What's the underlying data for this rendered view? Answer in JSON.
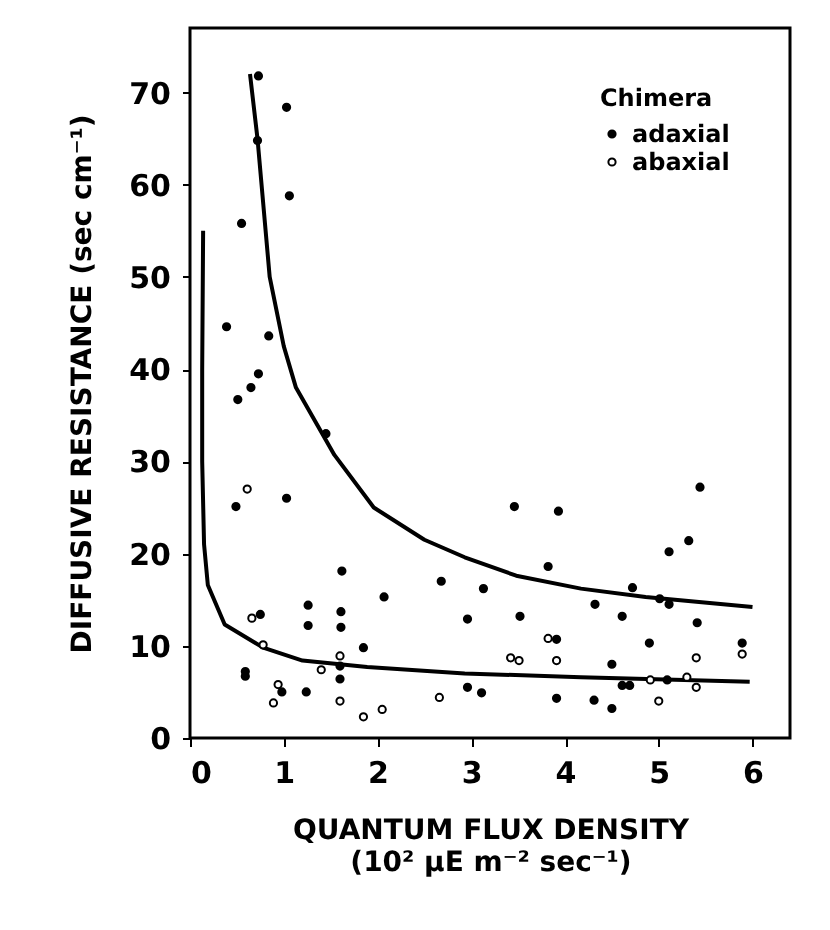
{
  "chart_data": {
    "type": "scatter",
    "xlabel": "QUANTUM FLUX DENSITY\n(10² µE m⁻² sec⁻¹)",
    "ylabel": "DIFFUSIVE RESISTANCE (sec cm⁻¹)",
    "legend_title": "Chimera",
    "legend": "top right",
    "marker": "circle",
    "grid": false,
    "xlim": [
      0,
      6.4
    ],
    "ylim": [
      0,
      77
    ],
    "xticks": [
      0,
      1,
      2,
      3,
      4,
      5,
      6
    ],
    "yticks": [
      0,
      10,
      20,
      30,
      40,
      50,
      60,
      70
    ],
    "series": [
      {
        "name": "adaxial",
        "color": "#000000",
        "x": [
          0.73,
          1.03,
          0.72,
          1.06,
          0.55,
          0.39,
          0.84,
          0.73,
          0.65,
          0.51,
          1.45,
          0.49,
          1.03,
          1.62,
          2.68,
          2.07,
          1.26,
          1.61,
          1.26,
          1.61,
          0.75,
          1.85,
          1.6,
          1.6,
          0.59,
          0.59,
          0.98,
          1.24,
          3.46,
          3.93,
          5.44,
          5.32,
          5.11,
          3.82,
          3.13,
          4.72,
          5.01,
          5.11,
          4.32,
          2.96,
          3.52,
          4.61,
          5.41,
          3.91,
          4.9,
          5.89,
          4.5,
          5.09,
          4.61,
          4.69,
          2.96,
          3.11,
          3.91,
          4.31,
          4.5
        ],
        "values": [
          71.8,
          68.4,
          64.8,
          58.8,
          55.8,
          44.6,
          43.6,
          39.5,
          38,
          36.7,
          33,
          25.1,
          26,
          18.1,
          17,
          15.3,
          14.4,
          13.7,
          12.2,
          12,
          13.4,
          9.8,
          7.8,
          6.4,
          7.2,
          6.7,
          5,
          5,
          25.1,
          24.6,
          27.2,
          21.4,
          20.2,
          18.6,
          16.2,
          16.3,
          15.1,
          14.5,
          14.5,
          12.9,
          13.2,
          13.2,
          12.5,
          10.7,
          10.3,
          10.3,
          8,
          6.3,
          5.7,
          5.7,
          5.5,
          4.9,
          4.3,
          4.1,
          3.2
        ]
      },
      {
        "name": "abaxial",
        "color": "#000000",
        "x": [
          0.61,
          0.66,
          0.78,
          1.6,
          1.4,
          0.94,
          0.89,
          1.6,
          1.85,
          2.05,
          2.66,
          3.82,
          5.89,
          3.42,
          3.51,
          3.91,
          5.4,
          5.4,
          4.91,
          5.3,
          5.0
        ],
        "values": [
          27,
          13,
          10.1,
          8.9,
          7.4,
          5.8,
          3.8,
          4,
          2.3,
          3.1,
          4.4,
          10.8,
          9.1,
          8.7,
          8.4,
          8.4,
          8.7,
          5.5,
          6.3,
          6.6,
          4.0
        ]
      },
      {
        "type": "line",
        "color": "#000000",
        "marker": "none",
        "x": [
          0.64,
          0.72,
          0.85,
          1.0,
          1.13,
          1.54,
          1.96,
          2.5,
          2.93,
          3.48,
          4.17,
          4.86,
          6.0
        ],
        "values": [
          72,
          65,
          50,
          42.5,
          38,
          30.7,
          25,
          21.5,
          19.6,
          17.6,
          16.2,
          15.3,
          14.2
        ]
      },
      {
        "type": "line",
        "color": "#000000",
        "marker": "none",
        "x": [
          0.14,
          0.13,
          0.13,
          0.15,
          0.19,
          0.37,
          0.78,
          1.2,
          1.89,
          2.93,
          4.17,
          5.97
        ],
        "values": [
          55,
          40,
          30,
          21,
          16.6,
          12.3,
          9.8,
          8.4,
          7.7,
          7.0,
          6.6,
          6.1
        ]
      }
    ]
  }
}
